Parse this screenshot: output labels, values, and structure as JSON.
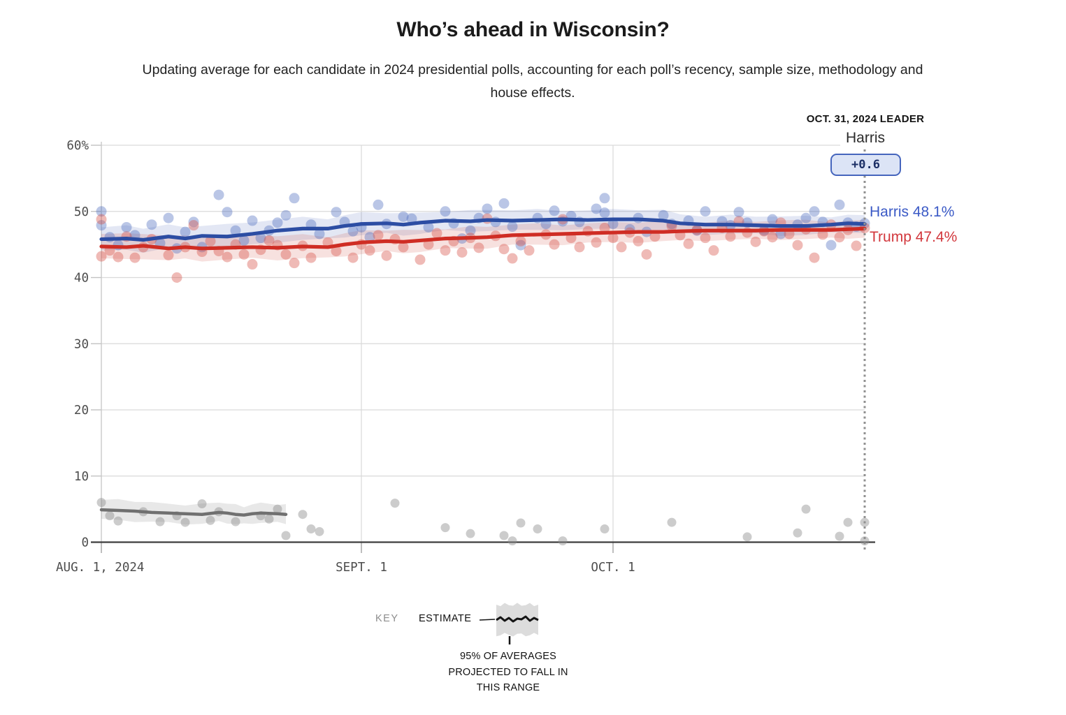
{
  "title": "Who’s ahead in Wisconsin?",
  "subtitle": "Updating average for each candidate in 2024 presidential polls, accounting for each poll’s recency, sample size, methodology and house effects.",
  "leader": {
    "heading": "OCT. 31, 2024 LEADER",
    "name": "Harris",
    "margin": "+0.6"
  },
  "end_labels": {
    "harris": "Harris 48.1%",
    "trump": "Trump 47.4%"
  },
  "key": {
    "key_label": "KEY",
    "estimate_label": "ESTIMATE",
    "band_note": "95% OF AVERAGES PROJECTED TO FALL IN THIS RANGE"
  },
  "colors": {
    "harris_line": "#2c4da3",
    "harris_band": "rgba(86,110,190,0.17)",
    "harris_dot": "#4a6abe",
    "trump_line": "#cf2d24",
    "trump_band": "rgba(208,70,58,0.16)",
    "trump_dot": "#d85248",
    "third_line": "#707070",
    "third_band": "rgba(128,128,128,0.18)",
    "third_dot": "#8f8f8f",
    "grid": "#d9d9d9",
    "axis": "#3d3d3d",
    "tick_text": "#4d4d4d",
    "end_line": "#909090"
  },
  "chart_data": {
    "type": "line",
    "title": "Who's ahead in Wisconsin?",
    "x_unit": "days since Aug 1, 2024",
    "x_range": [
      0,
      91
    ],
    "ylim": [
      0,
      60
    ],
    "grid": true,
    "x_ticks": [
      {
        "day": 0,
        "label": "AUG. 1, 2024",
        "align": "left"
      },
      {
        "day": 31,
        "label": "SEPT. 1",
        "align": "middle"
      },
      {
        "day": 61,
        "label": "OCT. 1",
        "align": "middle"
      }
    ],
    "y_ticks": [
      {
        "v": 60,
        "label": "60%"
      },
      {
        "v": 50,
        "label": "50"
      },
      {
        "v": 40,
        "label": "40"
      },
      {
        "v": 30,
        "label": "30"
      },
      {
        "v": 20,
        "label": "20"
      },
      {
        "v": 10,
        "label": "10"
      },
      {
        "v": 0,
        "label": "0"
      }
    ],
    "end_line_day": 91,
    "series": [
      {
        "name": "Harris estimate",
        "color_key": "harris",
        "band_halfwidth": [
          1.8,
          1.3
        ],
        "x": [
          0,
          3,
          5,
          8,
          10,
          12,
          15,
          18,
          21,
          24,
          27,
          29,
          31,
          34,
          36,
          38,
          41,
          44,
          46,
          49,
          52,
          55,
          58,
          61,
          64,
          67,
          69,
          72,
          75,
          78,
          81,
          84,
          87,
          89,
          91
        ],
        "values": [
          45.8,
          45.9,
          45.7,
          46.2,
          45.9,
          46.3,
          46.2,
          46.6,
          47.1,
          47.4,
          47.4,
          47.8,
          48.1,
          48.2,
          48.0,
          48.3,
          48.6,
          48.5,
          48.7,
          48.6,
          48.7,
          48.8,
          48.7,
          48.8,
          48.8,
          48.6,
          48.2,
          48.0,
          48.0,
          47.9,
          47.8,
          47.8,
          48.0,
          48.2,
          48.1
        ],
        "end_value": 48.1
      },
      {
        "name": "Trump estimate",
        "color_key": "trump",
        "band_halfwidth": [
          1.9,
          1.3
        ],
        "x": [
          0,
          3,
          5,
          8,
          10,
          12,
          15,
          18,
          21,
          24,
          27,
          29,
          31,
          34,
          36,
          38,
          41,
          44,
          46,
          49,
          52,
          55,
          58,
          61,
          64,
          67,
          69,
          72,
          75,
          78,
          81,
          84,
          87,
          89,
          91
        ],
        "values": [
          44.7,
          44.6,
          44.8,
          44.4,
          44.6,
          44.4,
          44.5,
          44.6,
          44.5,
          44.7,
          44.6,
          45.0,
          45.3,
          45.5,
          45.4,
          45.6,
          45.9,
          46.0,
          46.1,
          46.4,
          46.5,
          46.6,
          46.7,
          46.8,
          46.9,
          46.9,
          47.0,
          47.1,
          47.1,
          47.1,
          47.2,
          47.2,
          47.2,
          47.3,
          47.4
        ],
        "end_value": 47.4
      },
      {
        "name": "Third party estimate",
        "color_key": "third",
        "band_halfwidth": [
          1.5,
          1.4
        ],
        "x": [
          0,
          2,
          4,
          6,
          8,
          10,
          12,
          14,
          15,
          16,
          17,
          18,
          19,
          21,
          22
        ],
        "values": [
          4.9,
          4.8,
          4.7,
          4.5,
          4.4,
          4.3,
          4.2,
          4.5,
          4.4,
          4.2,
          4.1,
          4.3,
          4.4,
          4.3,
          4.2
        ],
        "end_value": 4.2
      }
    ],
    "polls": {
      "harris": [
        [
          0,
          50
        ],
        [
          0,
          47.9
        ],
        [
          1,
          46.1
        ],
        [
          2,
          44.9
        ],
        [
          3,
          47.6
        ],
        [
          4,
          46.4
        ],
        [
          6,
          48
        ],
        [
          7,
          45.2
        ],
        [
          8,
          49
        ],
        [
          9,
          44.4
        ],
        [
          10,
          46.9
        ],
        [
          11,
          48.4
        ],
        [
          12,
          44.6
        ],
        [
          14,
          52.5
        ],
        [
          15,
          49.9
        ],
        [
          16,
          47.1
        ],
        [
          17,
          45.6
        ],
        [
          18,
          48.6
        ],
        [
          19,
          46
        ],
        [
          20,
          47.1
        ],
        [
          21,
          48.3
        ],
        [
          22,
          49.4
        ],
        [
          23,
          52
        ],
        [
          25,
          48
        ],
        [
          26,
          46.6
        ],
        [
          28,
          49.9
        ],
        [
          29,
          48.4
        ],
        [
          30,
          47
        ],
        [
          31,
          47.6
        ],
        [
          32,
          46.1
        ],
        [
          33,
          51
        ],
        [
          34,
          48.1
        ],
        [
          36,
          49.2
        ],
        [
          37,
          48.9
        ],
        [
          39,
          47.6
        ],
        [
          41,
          50
        ],
        [
          42,
          48.2
        ],
        [
          43,
          45.9
        ],
        [
          44,
          47.1
        ],
        [
          45,
          49
        ],
        [
          46,
          50.4
        ],
        [
          47,
          48.4
        ],
        [
          48,
          51.2
        ],
        [
          49,
          47.7
        ],
        [
          50,
          44.9
        ],
        [
          52,
          49
        ],
        [
          53,
          48.1
        ],
        [
          54,
          50.1
        ],
        [
          55,
          48.5
        ],
        [
          56,
          49.3
        ],
        [
          57,
          48.4
        ],
        [
          59,
          50.4
        ],
        [
          60,
          52
        ],
        [
          60,
          49.8
        ],
        [
          61,
          48.1
        ],
        [
          63,
          47.3
        ],
        [
          64,
          49
        ],
        [
          65,
          46.9
        ],
        [
          67,
          49.4
        ],
        [
          68,
          48.1
        ],
        [
          70,
          48.6
        ],
        [
          71,
          47.1
        ],
        [
          72,
          50
        ],
        [
          74,
          48.5
        ],
        [
          75,
          47.9
        ],
        [
          76,
          49.9
        ],
        [
          77,
          48.3
        ],
        [
          79,
          47.1
        ],
        [
          80,
          48.8
        ],
        [
          81,
          46.6
        ],
        [
          83,
          48
        ],
        [
          84,
          49
        ],
        [
          85,
          50
        ],
        [
          86,
          48.4
        ],
        [
          87,
          44.9
        ],
        [
          88,
          51
        ],
        [
          89,
          48.3
        ],
        [
          90,
          47.7
        ],
        [
          91,
          48.2
        ]
      ],
      "trump": [
        [
          0,
          48.8
        ],
        [
          0,
          43.2
        ],
        [
          1,
          44.1
        ],
        [
          2,
          43.1
        ],
        [
          3,
          46.2
        ],
        [
          4,
          43
        ],
        [
          5,
          44.6
        ],
        [
          6,
          45.8
        ],
        [
          8,
          43.4
        ],
        [
          9,
          40
        ],
        [
          10,
          44.6
        ],
        [
          11,
          47.9
        ],
        [
          12,
          43.9
        ],
        [
          13,
          45.5
        ],
        [
          14,
          44
        ],
        [
          15,
          43.1
        ],
        [
          16,
          45
        ],
        [
          17,
          43.5
        ],
        [
          18,
          42
        ],
        [
          19,
          44.2
        ],
        [
          20,
          45.6
        ],
        [
          21,
          44.9
        ],
        [
          22,
          43.5
        ],
        [
          23,
          42.2
        ],
        [
          24,
          44.8
        ],
        [
          25,
          43
        ],
        [
          27,
          45.3
        ],
        [
          28,
          44
        ],
        [
          30,
          43
        ],
        [
          31,
          45
        ],
        [
          32,
          44.1
        ],
        [
          33,
          46.4
        ],
        [
          34,
          43.3
        ],
        [
          35,
          45.8
        ],
        [
          36,
          44.6
        ],
        [
          38,
          42.7
        ],
        [
          39,
          45
        ],
        [
          40,
          46.7
        ],
        [
          41,
          44.1
        ],
        [
          42,
          45.5
        ],
        [
          43,
          43.8
        ],
        [
          44,
          46
        ],
        [
          45,
          44.5
        ],
        [
          46,
          48.9
        ],
        [
          47,
          46.3
        ],
        [
          48,
          44.3
        ],
        [
          49,
          42.9
        ],
        [
          50,
          45.5
        ],
        [
          51,
          44.1
        ],
        [
          53,
          46.5
        ],
        [
          54,
          45
        ],
        [
          55,
          48.8
        ],
        [
          56,
          46
        ],
        [
          57,
          44.6
        ],
        [
          58,
          47
        ],
        [
          59,
          45.3
        ],
        [
          60,
          47.5
        ],
        [
          61,
          46
        ],
        [
          62,
          44.6
        ],
        [
          63,
          46.8
        ],
        [
          64,
          45.5
        ],
        [
          65,
          43.5
        ],
        [
          66,
          46.2
        ],
        [
          68,
          47.8
        ],
        [
          69,
          46.4
        ],
        [
          70,
          45.1
        ],
        [
          71,
          47.2
        ],
        [
          72,
          46
        ],
        [
          73,
          44.1
        ],
        [
          74,
          47.5
        ],
        [
          75,
          46.2
        ],
        [
          76,
          48.5
        ],
        [
          77,
          46.8
        ],
        [
          78,
          45.4
        ],
        [
          79,
          47
        ],
        [
          80,
          46.1
        ],
        [
          81,
          48.3
        ],
        [
          82,
          46.6
        ],
        [
          83,
          44.9
        ],
        [
          84,
          47.3
        ],
        [
          85,
          43
        ],
        [
          86,
          46.5
        ],
        [
          87,
          48
        ],
        [
          88,
          46.1
        ],
        [
          89,
          47.2
        ],
        [
          90,
          44.8
        ],
        [
          91,
          47.5
        ]
      ],
      "third_party": [
        [
          0,
          6
        ],
        [
          1,
          4
        ],
        [
          2,
          3.2
        ],
        [
          5,
          4.6
        ],
        [
          7,
          3.1
        ],
        [
          9,
          4
        ],
        [
          10,
          3
        ],
        [
          12,
          5.8
        ],
        [
          13,
          3.3
        ],
        [
          14,
          4.6
        ],
        [
          16,
          3.1
        ],
        [
          19,
          4
        ],
        [
          20,
          3.5
        ],
        [
          21,
          5
        ],
        [
          22,
          1
        ],
        [
          24,
          4.2
        ],
        [
          25,
          2
        ],
        [
          26,
          1.6
        ],
        [
          35,
          5.9
        ],
        [
          41,
          2.2
        ],
        [
          44,
          1.3
        ],
        [
          48,
          1
        ],
        [
          49,
          0.2
        ],
        [
          50,
          2.9
        ],
        [
          52,
          2
        ],
        [
          55,
          0.2
        ],
        [
          60,
          2
        ],
        [
          68,
          3
        ],
        [
          77,
          0.8
        ],
        [
          83,
          1.4
        ],
        [
          84,
          5
        ],
        [
          88,
          0.9
        ],
        [
          89,
          3
        ],
        [
          91,
          3
        ],
        [
          91,
          0.2
        ]
      ]
    }
  }
}
